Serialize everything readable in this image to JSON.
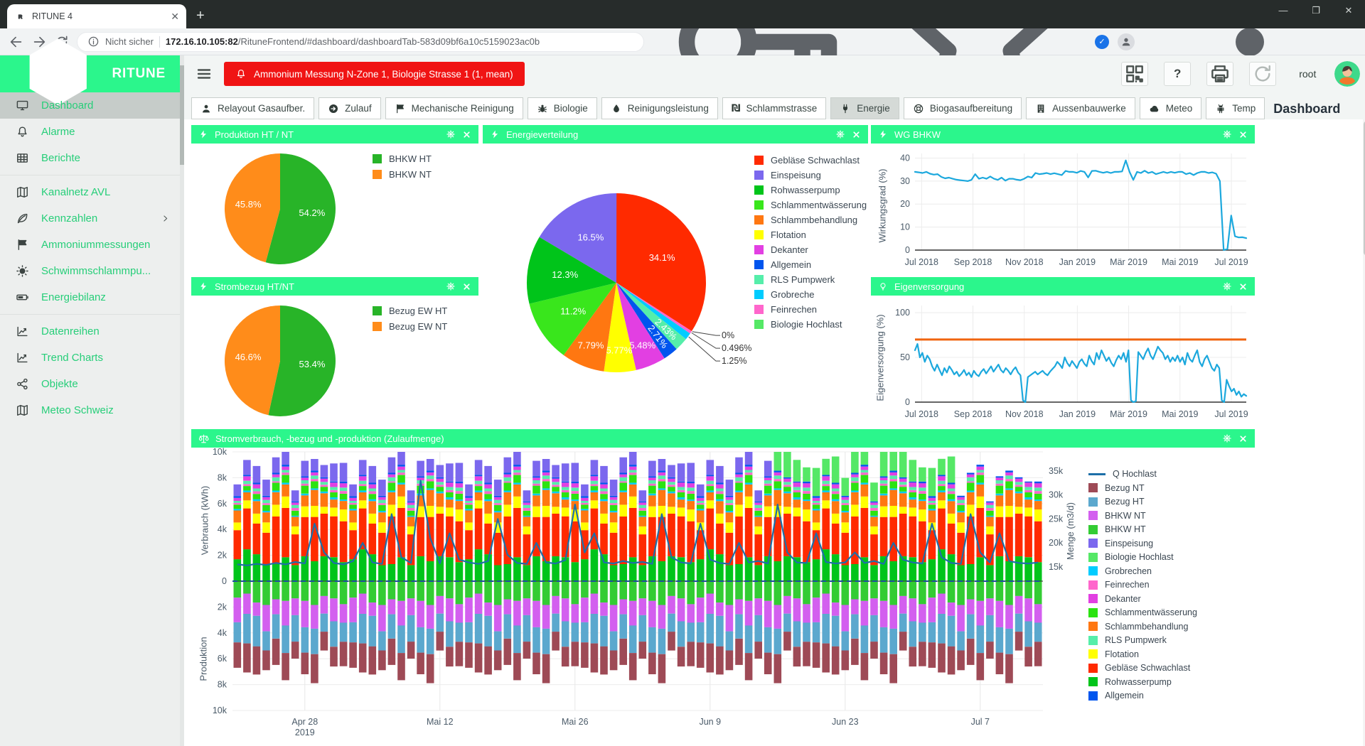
{
  "browser": {
    "tab_title": "RITUNE 4",
    "not_secure": "Nicht sicher",
    "url_host": "172.16.10.105:82",
    "url_path": "/RituneFrontend/#dashboard/dashboardTab-583d09bf6a10c5159023ac0b"
  },
  "app_header": {
    "alarm_text": "Ammonium Messung N-Zone 1, Biologie Strasse 1 (1, mean)",
    "user": "root"
  },
  "page_title": "Dashboard",
  "sidebar": {
    "brand": "RITUNE",
    "items": [
      {
        "label": "Dashboard",
        "icon": "monitor",
        "active": true
      },
      {
        "label": "Alarme",
        "icon": "bell"
      },
      {
        "label": "Berichte",
        "icon": "table"
      },
      {
        "label": "Kanalnetz AVL",
        "icon": "map",
        "divider_before": true
      },
      {
        "label": "Kennzahlen",
        "icon": "leaf",
        "chevron": true
      },
      {
        "label": "Ammoniummessungen",
        "icon": "flag"
      },
      {
        "label": "Schwimmschlammpu...",
        "icon": "sun"
      },
      {
        "label": "Energiebilanz",
        "icon": "battery"
      },
      {
        "label": "Datenreihen",
        "icon": "chart",
        "divider_before": true
      },
      {
        "label": "Trend Charts",
        "icon": "chart"
      },
      {
        "label": "Objekte",
        "icon": "share"
      },
      {
        "label": "Meteo Schweiz",
        "icon": "map"
      }
    ]
  },
  "tabs": [
    {
      "label": "Relayout Gasaufber.",
      "icon": "person"
    },
    {
      "label": "Zulauf",
      "icon": "arrowcircle"
    },
    {
      "label": "Mechanische Reinigung",
      "icon": "flag"
    },
    {
      "label": "Biologie",
      "icon": "bug"
    },
    {
      "label": "Reinigungsleistung",
      "icon": "drop"
    },
    {
      "label": "Schlammstrasse",
      "icon": "shekel"
    },
    {
      "label": "Energie",
      "icon": "plug",
      "active": true
    },
    {
      "label": "Biogasaufbereitung",
      "icon": "lifering"
    },
    {
      "label": "Aussenbauwerke",
      "icon": "building"
    },
    {
      "label": "Meteo",
      "icon": "cloud"
    },
    {
      "label": "Temp",
      "icon": "robot"
    }
  ],
  "chart_data": [
    {
      "type": "pie",
      "title": "Produktion HT / NT",
      "icon": "lightning",
      "slices": [
        {
          "name": "BHKW HT",
          "value": 54.2,
          "label": "54.2%",
          "color": "#28B428"
        },
        {
          "name": "BHKW NT",
          "value": 45.8,
          "label": "45.8%",
          "color": "#FF8C1A"
        }
      ]
    },
    {
      "type": "pie",
      "title": "Strombezug HT/NT",
      "icon": "lightning",
      "slices": [
        {
          "name": "Bezug EW HT",
          "value": 53.4,
          "label": "53.4%",
          "color": "#28B428"
        },
        {
          "name": "Bezug EW NT",
          "value": 46.6,
          "label": "46.6%",
          "color": "#FF8C1A"
        }
      ]
    },
    {
      "type": "pie",
      "title": "Energieverteilung",
      "icon": "lightning",
      "slices": [
        {
          "name": "Gebläse Schwachlast",
          "value": 34.1,
          "label": "34.1%",
          "color": "#FF2A00"
        },
        {
          "name": "Einspeisung",
          "value": 16.5,
          "label": "16.5%",
          "color": "#7B68EE"
        },
        {
          "name": "Rohwasserpump",
          "value": 12.3,
          "label": "12.3%",
          "color": "#00C41A"
        },
        {
          "name": "Schlammentwässerung",
          "value": 11.2,
          "label": "11.2%",
          "color": "#39E61C"
        },
        {
          "name": "Schlammbehandlung",
          "value": 7.79,
          "label": "7.79%",
          "color": "#FF7711"
        },
        {
          "name": "Flotation",
          "value": 5.77,
          "label": "5.77%",
          "color": "#FFFF00"
        },
        {
          "name": "Dekanter",
          "value": 5.48,
          "label": "5.48%",
          "color": "#E23FE2"
        },
        {
          "name": "Allgemein",
          "value": 2.71,
          "label": "2.71%",
          "color": "#0055EE",
          "rotate": true
        },
        {
          "name": "RLS Pumpwerk",
          "value": 2.43,
          "label": "2.43%",
          "color": "#55EEAA",
          "rotate": true
        },
        {
          "name": "Grobreche",
          "value": 1.25,
          "label": "1.25%",
          "color": "#00CCFF",
          "outside": true
        },
        {
          "name": "Feinrechen",
          "value": 0.496,
          "label": "0.496%",
          "color": "#FF66CC",
          "outside": true
        },
        {
          "name": "Biologie Hochlast",
          "value": 0,
          "label": "0%",
          "color": "#55E866",
          "outside": true
        }
      ]
    },
    {
      "type": "line",
      "title": "WG BHKW",
      "icon": "lightning",
      "ylabel": "Wirkungsgrad (%)",
      "ylim": [
        0,
        42
      ],
      "yticks": [
        0,
        10,
        20,
        30,
        40
      ],
      "xticks": [
        {
          "f": 0.02,
          "label": "Jul 2018"
        },
        {
          "f": 0.175,
          "label": "Sep 2018"
        },
        {
          "f": 0.33,
          "label": "Nov 2018"
        },
        {
          "f": 0.49,
          "label": "Jan 2019"
        },
        {
          "f": 0.645,
          "label": "Mär 2019"
        },
        {
          "f": 0.8,
          "label": "Mai 2019"
        },
        {
          "f": 0.955,
          "label": "Jul 2019"
        }
      ],
      "color": "#1CA8DD",
      "values": [
        34,
        33.8,
        33.5,
        34,
        33.2,
        32.8,
        33,
        31.8,
        31.2,
        31.5,
        31,
        30.6,
        30.4,
        30.2,
        30,
        30.5,
        33,
        31,
        31.5,
        31,
        32,
        31,
        30.5,
        31.5,
        30.2,
        31,
        31,
        30.6,
        30.4,
        31,
        32,
        31.5,
        33.5,
        33,
        33.2,
        33.5,
        33,
        33.4,
        33,
        32.6,
        34.4,
        34,
        34,
        33.6,
        34.4,
        34,
        31.6,
        34.4,
        34.5,
        34,
        33.6,
        34,
        33.5,
        34,
        34,
        34.2,
        39,
        34,
        30.5,
        34,
        33.5,
        34.5,
        33.5,
        34,
        33,
        33.5,
        34,
        33.5,
        34,
        33.6,
        34,
        34,
        33,
        33.5,
        32.6,
        33.5,
        34,
        34,
        33.5,
        33.8,
        33.2,
        30,
        0,
        0.5,
        15,
        6,
        5.5,
        5.6,
        5.2
      ]
    },
    {
      "type": "line",
      "title": "Eigenversorgung",
      "icon": "bulb",
      "ylabel": "Eigenversorgung (%)",
      "ylim": [
        0,
        108
      ],
      "yticks": [
        0,
        50,
        100
      ],
      "threshold": 70,
      "threshold_color": "#F0640F",
      "xticks": [
        {
          "f": 0.02,
          "label": "Jul 2018"
        },
        {
          "f": 0.175,
          "label": "Sep 2018"
        },
        {
          "f": 0.33,
          "label": "Nov 2018"
        },
        {
          "f": 0.49,
          "label": "Jan 2019"
        },
        {
          "f": 0.645,
          "label": "Mär 2019"
        },
        {
          "f": 0.8,
          "label": "Mai 2019"
        },
        {
          "f": 0.955,
          "label": "Jul 2019"
        }
      ],
      "color": "#1CA8DD",
      "values": [
        58,
        65,
        50,
        55,
        45,
        52,
        48,
        40,
        35,
        42,
        36,
        30,
        38,
        33,
        40,
        36,
        31,
        34,
        29,
        32,
        36,
        30,
        33,
        28,
        35,
        31,
        29,
        34,
        37,
        32,
        36,
        40,
        34,
        38,
        42,
        36,
        33,
        38,
        35,
        31,
        36,
        39,
        33,
        30,
        2,
        0,
        28,
        30,
        32,
        34,
        31,
        33,
        35,
        32,
        30,
        34,
        37,
        40,
        45,
        42,
        38,
        50,
        44,
        40,
        46,
        42,
        38,
        45,
        48,
        43,
        40,
        52,
        46,
        42,
        55,
        48,
        58,
        52,
        46,
        50,
        44,
        40,
        47,
        52,
        48,
        55,
        45,
        58,
        2,
        0,
        1,
        56,
        52,
        48,
        55,
        60,
        52,
        48,
        55,
        62,
        58,
        55,
        48,
        52,
        45,
        50,
        46,
        52,
        45,
        50,
        42,
        55,
        48,
        45,
        52,
        58,
        45,
        40,
        48,
        52,
        45,
        38,
        35,
        42,
        38,
        2,
        0,
        25,
        18,
        12,
        15,
        8,
        12,
        6,
        9,
        7
      ]
    },
    {
      "type": "stacked-bar",
      "title": "Stromverbrauch, -bezug und -produktion (Zulaufmenge)",
      "icon": "scale",
      "y_top_label": "Verbrauch (kWh)",
      "y_bottom_label": "Produktion",
      "y_right_label": "Menge (m3/d)",
      "ylim_kwh": 10000,
      "left_ticks": [
        "10k",
        "8k",
        "6k",
        "4k",
        "2k",
        "0",
        "2k",
        "4k",
        "6k",
        "8k",
        "10k"
      ],
      "right_axis": {
        "min": 12000,
        "max": 39000,
        "ticks": [
          15000,
          20000,
          25000,
          30000,
          35000
        ]
      },
      "n": 84,
      "x_ticks": [
        {
          "i": 7,
          "label": "Apr 28",
          "sub": "2019"
        },
        {
          "i": 21,
          "label": "Mai 12"
        },
        {
          "i": 35,
          "label": "Mai 26"
        },
        {
          "i": 49,
          "label": "Jun 9"
        },
        {
          "i": 63,
          "label": "Jun 23"
        },
        {
          "i": 77,
          "label": "Jul 7"
        }
      ],
      "noise": [
        0.5,
        0.8,
        0.3,
        0.9,
        0.6,
        0.2,
        0.7,
        1,
        0.4,
        0.55,
        0.85,
        0.25,
        0.65,
        0.45,
        0.75,
        0.15,
        0.95,
        0.35,
        0.6,
        0.5,
        0.8,
        0.2,
        0.7,
        0.4,
        0.9,
        0.3,
        0.65,
        0.55,
        0.25,
        0.85,
        0.45,
        0.75,
        0.35,
        0.95,
        0.15,
        0.6,
        0.5,
        0.7,
        0.3,
        0.8,
        0.4,
        0.9,
        0.2,
        0.6,
        0.75,
        0.35,
        0.85,
        0.55,
        0.25,
        0.65,
        0.45,
        0.95,
        0.5,
        0.3,
        0.7,
        0.8,
        0.4,
        0.6,
        0.9,
        0.2,
        0.55,
        0.75,
        0.35,
        0.65,
        0.85,
        0.45,
        0.25,
        0.7,
        0.5,
        0.9,
        0.6,
        0.3,
        0.8,
        0.4,
        0.65,
        0.55,
        0.75,
        0.35,
        0.45,
        0.85,
        0.5,
        0.6,
        0.7,
        0.4
      ],
      "consumption": [
        {
          "name": "Rohwasserpump",
          "color": "#00C41A",
          "base": 1700,
          "phase": 0
        },
        {
          "name": "Gebläse Schwachlast",
          "color": "#FF2A00",
          "base": 2900,
          "phase": 11
        },
        {
          "name": "Flotation",
          "color": "#FFFF00",
          "base": 650,
          "phase": 23
        },
        {
          "name": "Schlammbehandlung",
          "color": "#FF7711",
          "base": 850,
          "phase": 35
        },
        {
          "name": "Grobrechen",
          "color": "#00CCFF",
          "base": 120,
          "phase": 47
        },
        {
          "name": "Schlammentwässerung",
          "color": "#2BE310",
          "base": 450,
          "phase": 59
        },
        {
          "name": "Feinrechen",
          "color": "#FF66CC",
          "base": 160,
          "phase": 71
        },
        {
          "name": "RLS Pumpwerk",
          "color": "#55EEAA",
          "base": 220,
          "phase": 5
        },
        {
          "name": "Dekanter",
          "color": "#E23FE2",
          "base": 260,
          "phase": 17
        },
        {
          "name": "Allgemein",
          "color": "#0055EE",
          "base": 110,
          "phase": 29
        },
        {
          "name": "Biologie Hochlast",
          "color": "#55E866",
          "base": 1600,
          "phase": 41,
          "active": [
            56,
            74
          ]
        },
        {
          "name": "Einspeisung",
          "color": "#7B68EE",
          "base": 1100,
          "phase": 53,
          "active": [
            0,
            57
          ]
        }
      ],
      "production": [
        {
          "name": "BHKW HT",
          "color": "#33CC33",
          "base": 1400,
          "phase": 8
        },
        {
          "name": "BHKW NT",
          "color": "#D35FEF",
          "base": 1500,
          "phase": 20
        },
        {
          "name": "Bezug HT",
          "color": "#5BA8CE",
          "base": 1800,
          "phase": 32
        },
        {
          "name": "Bezug NT",
          "color": "#9E4A56",
          "base": 1600,
          "phase": 44
        }
      ],
      "q_line": {
        "name": "Q Hochlast",
        "color": "#1D6FA8",
        "values_k_m3d": [
          15.5,
          15.3,
          15.6,
          15.4,
          15.8,
          15.5,
          16,
          15.7,
          24,
          18,
          15.8,
          15.5,
          16.2,
          20,
          15.9,
          15.6,
          26,
          17,
          15.8,
          33,
          21,
          15.7,
          22,
          16.5,
          15.9,
          15.6,
          16.2,
          25,
          17.5,
          15.8,
          15.6,
          20,
          15.9,
          15.7,
          16.4,
          28,
          18,
          22,
          15.9,
          15.7,
          16.2,
          15.8,
          16,
          15.6,
          26,
          17,
          15.9,
          15.7,
          24,
          16.5,
          15.8,
          15.6,
          20,
          15.9,
          16.2,
          15.7,
          28,
          18,
          15.9,
          15.8,
          22,
          16,
          15.7,
          15.9,
          18,
          15.8,
          16.2,
          15.6,
          20,
          16.5,
          15.9,
          15.7,
          24,
          17,
          15.8,
          15.6,
          26,
          18,
          15.9,
          22,
          16.2,
          15.8,
          15.7,
          15.9
        ]
      },
      "legend": [
        {
          "label": "Q Hochlast",
          "color": "#1D6FA8",
          "type": "line"
        },
        {
          "label": "Bezug NT",
          "color": "#9E4A56"
        },
        {
          "label": "Bezug HT",
          "color": "#5BA8CE"
        },
        {
          "label": "BHKW NT",
          "color": "#D35FEF"
        },
        {
          "label": "BHKW HT",
          "color": "#33CC33"
        },
        {
          "label": "Einspeisung",
          "color": "#7B68EE"
        },
        {
          "label": "Biologie Hochlast",
          "color": "#55E866"
        },
        {
          "label": "Grobrechen",
          "color": "#00CCFF"
        },
        {
          "label": "Feinrechen",
          "color": "#FF66CC"
        },
        {
          "label": "Dekanter",
          "color": "#E23FE2"
        },
        {
          "label": "Schlammentwässerung",
          "color": "#2BE310"
        },
        {
          "label": "Schlammbehandlung",
          "color": "#FF7711"
        },
        {
          "label": "RLS Pumpwerk",
          "color": "#55EEAA"
        },
        {
          "label": "Flotation",
          "color": "#FFFF00"
        },
        {
          "label": "Gebläse Schwachlast",
          "color": "#FF2A00"
        },
        {
          "label": "Rohwasserpump",
          "color": "#00C41A"
        },
        {
          "label": "Allgemein",
          "color": "#0055EE"
        }
      ]
    }
  ]
}
